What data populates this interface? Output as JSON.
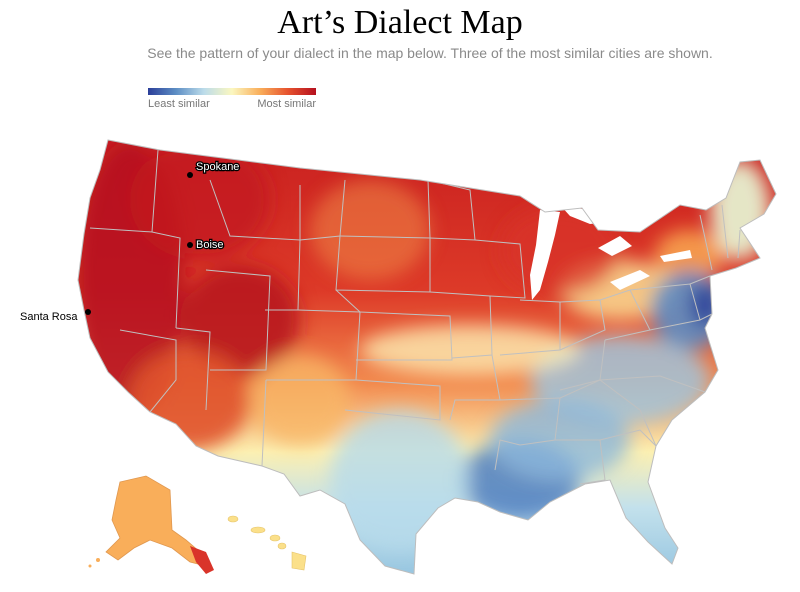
{
  "title": "Art’s Dialect Map",
  "subtitle": "See the pattern of your dialect in the map below. Three of the most similar cities are shown.",
  "legend": {
    "least_label": "Least similar",
    "most_label": "Most similar",
    "colors": [
      "#2b3f99",
      "#5d8ec4",
      "#bcdcea",
      "#fbf7c0",
      "#f9ae5a",
      "#e6522e",
      "#b5101f"
    ]
  },
  "cities": [
    {
      "name": "Spokane"
    },
    {
      "name": "Boise"
    },
    {
      "name": "Santa Rosa"
    }
  ],
  "colors": {
    "most_similar": "#c81e1f",
    "high": "#e04a2c",
    "mid_high": "#f59a55",
    "neutral": "#fbf4b8",
    "low": "#c3e1ec",
    "least_similar": "#2d44a0",
    "state_border": "#bdbdbd"
  }
}
